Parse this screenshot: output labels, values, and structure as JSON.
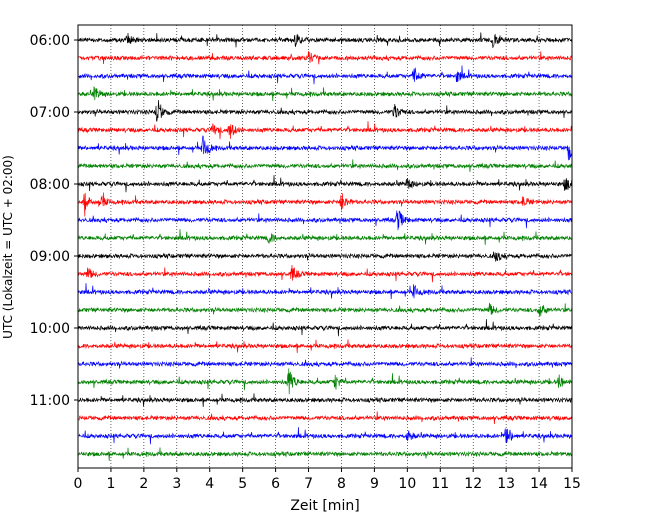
{
  "chart_data": {
    "type": "line",
    "title": "",
    "xlabel": "Zeit  [min]",
    "ylabel": "UTC (Lokalzeit = UTC + 02:00)",
    "xlim": [
      0,
      15
    ],
    "x_ticks": [
      0,
      1,
      2,
      3,
      4,
      5,
      6,
      7,
      8,
      9,
      10,
      11,
      12,
      13,
      14,
      15
    ],
    "y_tick_labels": [
      "06:00",
      "07:00",
      "08:00",
      "09:00",
      "10:00",
      "11:00"
    ],
    "trace_start_time": "06:00",
    "trace_interval_minutes": 15,
    "trace_count": 24,
    "trace_colors": [
      "#000000",
      "#ff0000",
      "#0000ff",
      "#008000"
    ],
    "grid": "vertical dotted at each minute",
    "events": [
      {
        "trace": 0,
        "minute": 1.5,
        "amplitude": 0.3
      },
      {
        "trace": 0,
        "minute": 6.6,
        "amplitude": 0.3
      },
      {
        "trace": 0,
        "minute": 12.6,
        "amplitude": 0.35
      },
      {
        "trace": 1,
        "minute": 7.0,
        "amplitude": 0.3
      },
      {
        "trace": 2,
        "minute": 10.2,
        "amplitude": 0.55
      },
      {
        "trace": 2,
        "minute": 11.5,
        "amplitude": 0.3
      },
      {
        "trace": 3,
        "minute": 0.5,
        "amplitude": 0.35
      },
      {
        "trace": 4,
        "minute": 2.4,
        "amplitude": 0.75
      },
      {
        "trace": 4,
        "minute": 9.6,
        "amplitude": 0.45
      },
      {
        "trace": 5,
        "minute": 4.6,
        "amplitude": 0.55
      },
      {
        "trace": 5,
        "minute": 4.1,
        "amplitude": 0.3
      },
      {
        "trace": 6,
        "minute": 3.8,
        "amplitude": 0.7
      },
      {
        "trace": 6,
        "minute": 14.9,
        "amplitude": 0.65
      },
      {
        "trace": 8,
        "minute": 10.0,
        "amplitude": 0.3
      },
      {
        "trace": 8,
        "minute": 14.8,
        "amplitude": 0.4
      },
      {
        "trace": 9,
        "minute": 0.2,
        "amplitude": 0.45
      },
      {
        "trace": 9,
        "minute": 0.7,
        "amplitude": 0.35
      },
      {
        "trace": 9,
        "minute": 8.0,
        "amplitude": 0.55
      },
      {
        "trace": 9,
        "minute": 13.5,
        "amplitude": 0.3
      },
      {
        "trace": 10,
        "minute": 9.7,
        "amplitude": 0.65
      },
      {
        "trace": 11,
        "minute": 5.8,
        "amplitude": 0.3
      },
      {
        "trace": 12,
        "minute": 12.7,
        "amplitude": 0.3
      },
      {
        "trace": 13,
        "minute": 0.3,
        "amplitude": 0.3
      },
      {
        "trace": 13,
        "minute": 6.5,
        "amplitude": 0.4
      },
      {
        "trace": 14,
        "minute": 10.2,
        "amplitude": 0.35
      },
      {
        "trace": 15,
        "minute": 14.0,
        "amplitude": 0.45
      },
      {
        "trace": 15,
        "minute": 12.5,
        "amplitude": 0.3
      },
      {
        "trace": 19,
        "minute": 6.4,
        "amplitude": 0.75
      },
      {
        "trace": 19,
        "minute": 7.8,
        "amplitude": 0.4
      },
      {
        "trace": 19,
        "minute": 14.6,
        "amplitude": 0.35
      },
      {
        "trace": 22,
        "minute": 13.0,
        "amplitude": 0.6
      },
      {
        "trace": 22,
        "minute": 10.0,
        "amplitude": 0.3
      }
    ]
  }
}
